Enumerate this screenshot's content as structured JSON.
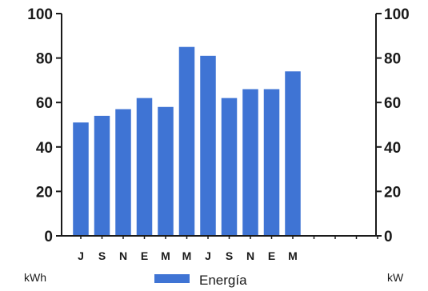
{
  "chart_data": {
    "type": "bar",
    "categories": [
      "J",
      "S",
      "N",
      "E",
      "M",
      "M",
      "J",
      "S",
      "N",
      "E",
      "M"
    ],
    "series": [
      {
        "name": "Energía",
        "values": [
          51,
          54,
          57,
          62,
          58,
          85,
          81,
          62,
          66,
          66,
          74
        ]
      }
    ],
    "empty_slots_after": 4,
    "ylim": [
      0,
      100
    ],
    "yticks": [
      0,
      20,
      40,
      60,
      80,
      100
    ],
    "y_left_unit": "kWh",
    "y_right_unit": "kW",
    "right_axis_ticks": [
      0,
      20,
      40,
      60,
      80,
      100
    ],
    "legend_placement": "bottom-center",
    "grid": false,
    "bar_color": "#3f74d4",
    "axis_color": "#1a1a1a"
  }
}
